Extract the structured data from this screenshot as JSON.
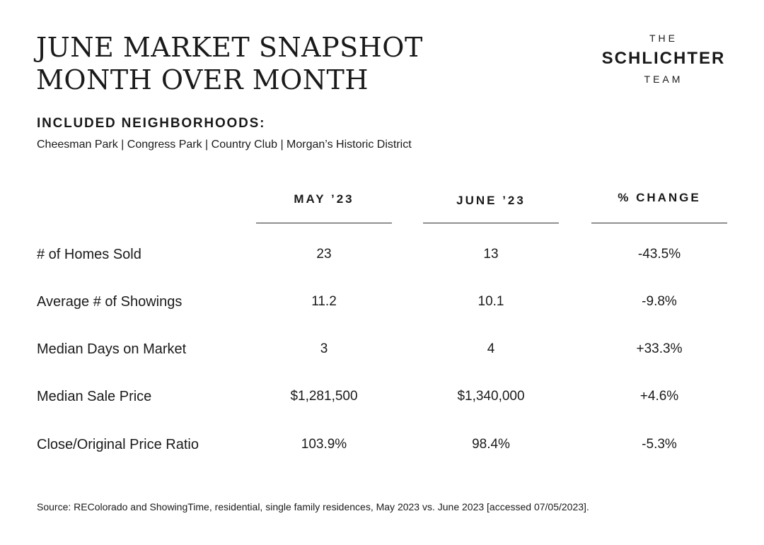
{
  "title": {
    "line1": "JUNE MARKET SNAPSHOT",
    "line2": "MONTH OVER MONTH"
  },
  "logo": {
    "the": "THE",
    "name": "SCHLICHTER",
    "team": "TEAM"
  },
  "neighborhoods": {
    "heading": "INCLUDED NEIGHBORHOODS:",
    "list": "Cheesman Park | Congress Park | Country Club | Morgan’s Historic District"
  },
  "table": {
    "columns": [
      "MAY ’23",
      "JUNE ’23",
      "% CHANGE"
    ],
    "rows": [
      {
        "label": "# of Homes Sold",
        "may": "23",
        "june": "13",
        "change": "-43.5%"
      },
      {
        "label": "Average # of Showings",
        "may": "11.2",
        "june": "10.1",
        "change": "-9.8%"
      },
      {
        "label": "Median Days on Market",
        "may": "3",
        "june": "4",
        "change": "+33.3%"
      },
      {
        "label": "Median Sale Price",
        "may": "$1,281,500",
        "june": "$1,340,000",
        "change": "+4.6%"
      },
      {
        "label": "Close/Original Price Ratio",
        "may": "103.9%",
        "june": "98.4%",
        "change": "-5.3%"
      }
    ]
  },
  "source": "Source: REColorado and ShowingTime, residential, single family residences, May 2023 vs. June 2023 [accessed 07/05/2023]."
}
